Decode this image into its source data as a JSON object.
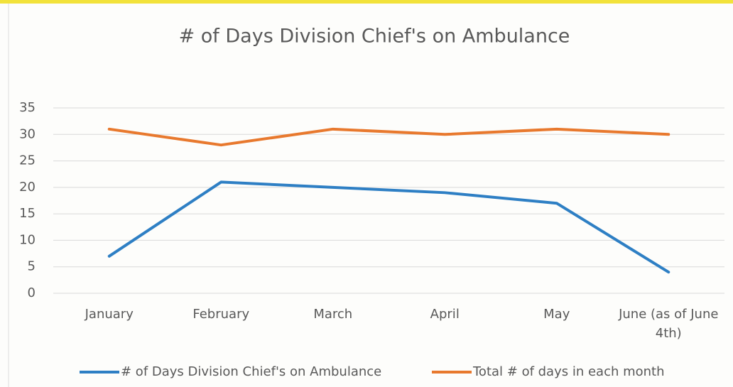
{
  "chart_data": {
    "type": "line",
    "title": "# of Days Division Chief's on Ambulance",
    "categories": [
      "January",
      "February",
      "March",
      "April",
      "May",
      "June (as of June 4th)"
    ],
    "series": [
      {
        "name": "# of Days Division Chief's on Ambulance",
        "color": "#2e7fc4",
        "values": [
          7,
          21,
          20,
          19,
          17,
          4
        ]
      },
      {
        "name": "Total # of days in each month",
        "color": "#e8792e",
        "values": [
          31,
          28,
          31,
          30,
          31,
          30
        ]
      }
    ],
    "ylim": [
      0,
      35
    ],
    "yticks": [
      0,
      5,
      10,
      15,
      20,
      25,
      30,
      35
    ],
    "grid": true,
    "legend": "bottom"
  }
}
